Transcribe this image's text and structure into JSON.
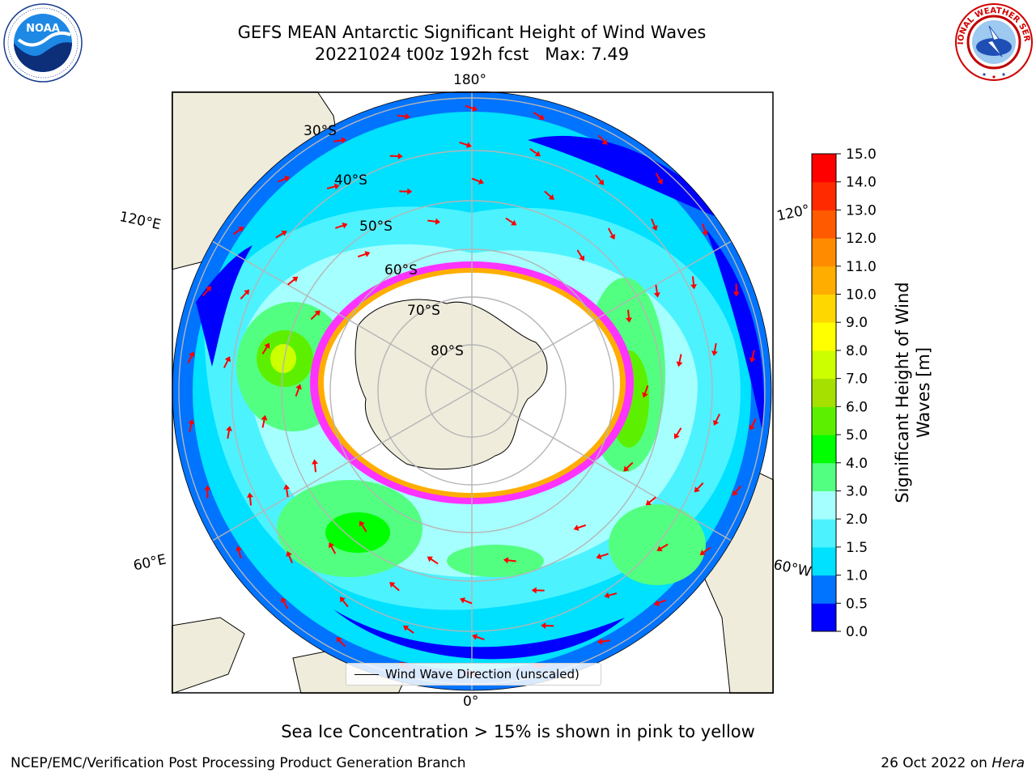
{
  "title": {
    "line1": "GEFS MEAN Antarctic Significant Height of Wind Waves",
    "line2": "20221024 t00z 192h fcst   Max: 7.49"
  },
  "logos": {
    "left": "NOAA",
    "right": "NATIONAL WEATHER SERVICE",
    "left_ring_text": "NATIONAL OCEANIC AND ATMOSPHERIC ADMINISTRATION · U.S. DEPARTMENT OF COMMERCE"
  },
  "map": {
    "projection": "south polar stereographic",
    "longitude_labels": {
      "lon180": "180°",
      "lon0": "0°",
      "lon120e": "120°E",
      "lon60e": "60°E",
      "lon120w": "120°",
      "lon60w": "60°W"
    },
    "latitude_labels": [
      "30°S",
      "40°S",
      "50°S",
      "60°S",
      "70°S",
      "80°S"
    ],
    "legend": "Wind Wave Direction (unscaled)",
    "vector_color": "#ff0000",
    "land_color": "#efecdc",
    "sea_ice_color": "#ff33ff"
  },
  "colorbar": {
    "label": "Significant Height of Wind\nWaves [m]",
    "ticks": [
      "0.0",
      "0.5",
      "1.0",
      "1.5",
      "2.0",
      "3.0",
      "4.0",
      "5.0",
      "6.0",
      "7.0",
      "8.0",
      "9.0",
      "10.0",
      "11.0",
      "12.0",
      "13.0",
      "14.0",
      "15.0"
    ],
    "colors": [
      "#0000ff",
      "#0073ff",
      "#00e0ff",
      "#4df2ff",
      "#a6ffff",
      "#53ff80",
      "#00ff00",
      "#5cf000",
      "#a6e000",
      "#ccff00",
      "#ffff00",
      "#ffd700",
      "#ffae00",
      "#ff8c00",
      "#ff5a00",
      "#ff2a00",
      "#ff0000"
    ]
  },
  "footer": {
    "note": "Sea Ice Concentration > 15% is shown in pink to yellow",
    "left": "NCEP/EMC/Verification Post Processing Product Generation Branch",
    "right_date": "26 Oct 2022 on ",
    "right_host": "Hera"
  }
}
